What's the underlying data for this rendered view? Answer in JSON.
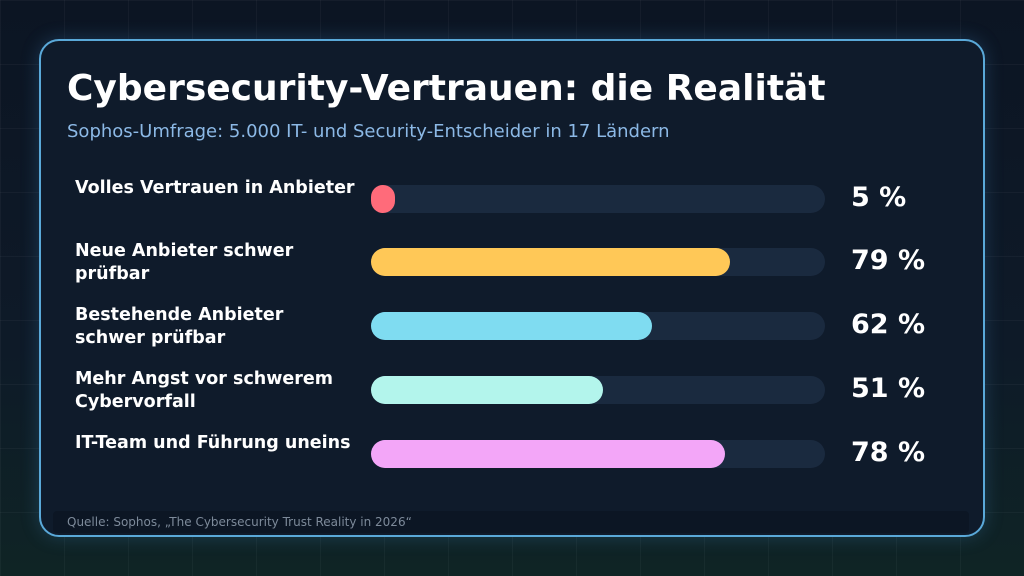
{
  "title": "Cybersecurity-Vertrauen: die Realität",
  "subtitle": "Sophos-Umfrage: 5.000 IT- und Security-Entscheider in 17 Ländern",
  "source": "Quelle: Sophos, „The Cybersecurity Trust Reality in 2026“",
  "colors": {
    "background": "#0d1726",
    "card": "#0f1b2b",
    "border": "#5aa9d9",
    "track": "#1a2a3f",
    "subtitle": "#8cb9e6"
  },
  "chart_data": {
    "type": "bar",
    "orientation": "horizontal",
    "title": "Cybersecurity-Vertrauen: die Realität",
    "subtitle": "Sophos-Umfrage: 5.000 IT- und Security-Entscheider in 17 Ländern",
    "xlim": [
      0,
      100
    ],
    "unit": "%",
    "grid": false,
    "legend": "none",
    "categories": [
      "Volles Vertrauen in Anbieter",
      "Neue Anbieter schwer prüfbar",
      "Bestehende Anbieter schwer prüfbar",
      "Mehr Angst vor schwerem Cybervorfall",
      "IT-Team und Führung uneins"
    ],
    "values": [
      5,
      79,
      62,
      51,
      78
    ],
    "value_labels": [
      "5 %",
      "79 %",
      "62 %",
      "51 %",
      "78 %"
    ],
    "bar_colors": [
      "#ff6b7a",
      "#ffc857",
      "#7fdcf1",
      "#b3f5ec",
      "#f3a6f8"
    ]
  }
}
